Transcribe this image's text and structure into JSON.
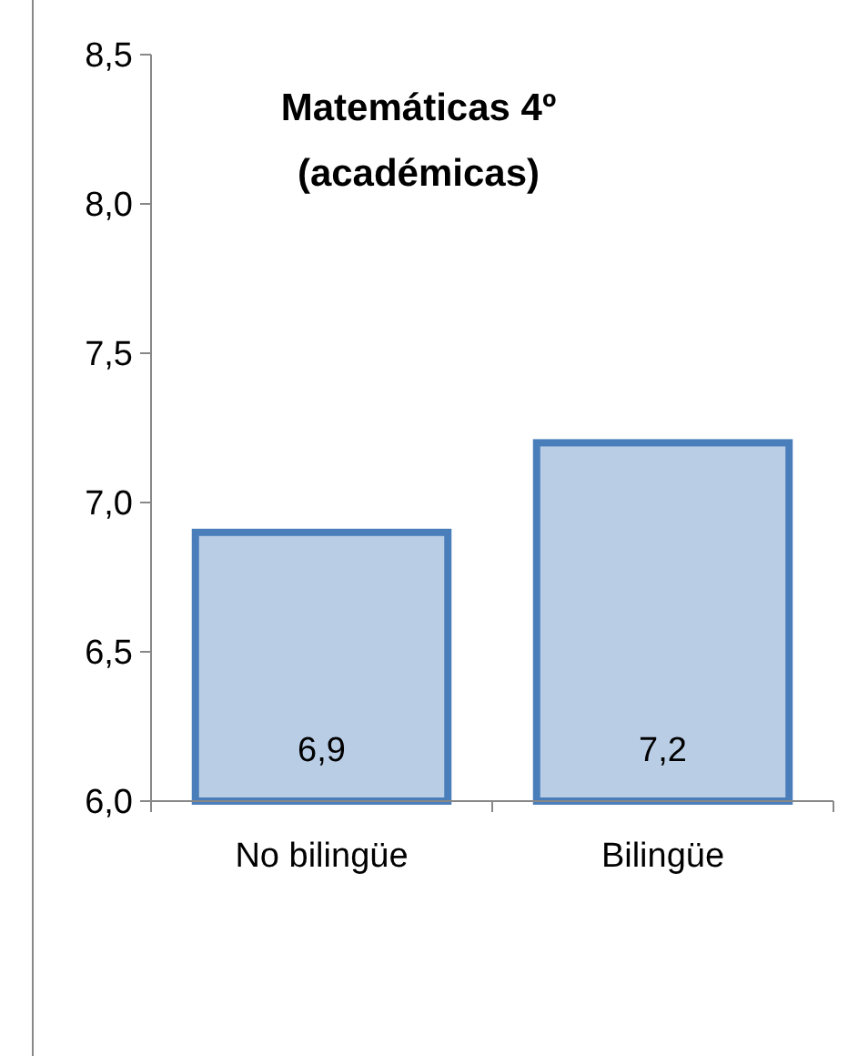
{
  "chart_data": {
    "type": "bar",
    "title": "Matemáticas 4º\n(académicas)",
    "categories": [
      "No bilingüe",
      "Bilingüe"
    ],
    "values": [
      6.9,
      7.2
    ],
    "value_labels": [
      "6,9",
      "7,2"
    ],
    "color": "#b9cde5",
    "ylim": [
      6.0,
      8.5
    ],
    "yticks": [
      {
        "value": 6.0,
        "label": "6,0"
      },
      {
        "value": 6.5,
        "label": "6,5"
      },
      {
        "value": 7.0,
        "label": "7,0"
      },
      {
        "value": 7.5,
        "label": "7,5"
      },
      {
        "value": 8.0,
        "label": "8,0"
      },
      {
        "value": 8.5,
        "label": "8,5"
      }
    ],
    "grid": false
  }
}
